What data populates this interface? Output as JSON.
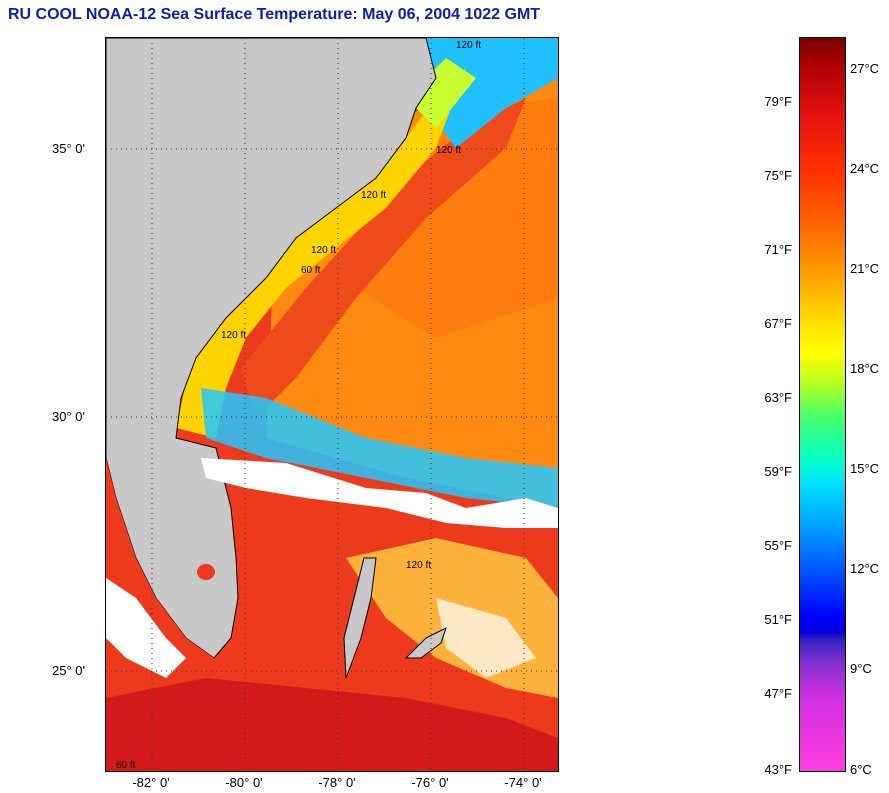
{
  "title": "RU COOL  NOAA-12  Sea Surface Temperature:  May 06, 2004 1022 GMT",
  "map": {
    "lat_labels": [
      "35° 0'",
      "30° 0'",
      "25° 0'"
    ],
    "lon_labels": [
      "-82° 0'",
      "-80° 0'",
      "-78° 0'",
      "-76° 0'",
      "-74° 0'"
    ],
    "contour_labels": [
      "120 ft",
      "120 ft",
      "120 ft",
      "120 ft",
      "120 ft",
      "60 ft",
      "60 ft",
      "120 ft"
    ],
    "colors": {
      "land": "#c8c8c8",
      "cloud": "#ffffff",
      "warm": "#e9321c",
      "shelf": "#ffd200",
      "cold": "#00d8ff"
    }
  },
  "colorbar": {
    "fahrenheit": [
      "79°F",
      "75°F",
      "71°F",
      "67°F",
      "63°F",
      "59°F",
      "55°F",
      "51°F",
      "47°F",
      "43°F"
    ],
    "celsius": [
      "27°C",
      "24°C",
      "21°C",
      "18°C",
      "15°C",
      "12°C",
      "9°C",
      "6°C"
    ]
  }
}
